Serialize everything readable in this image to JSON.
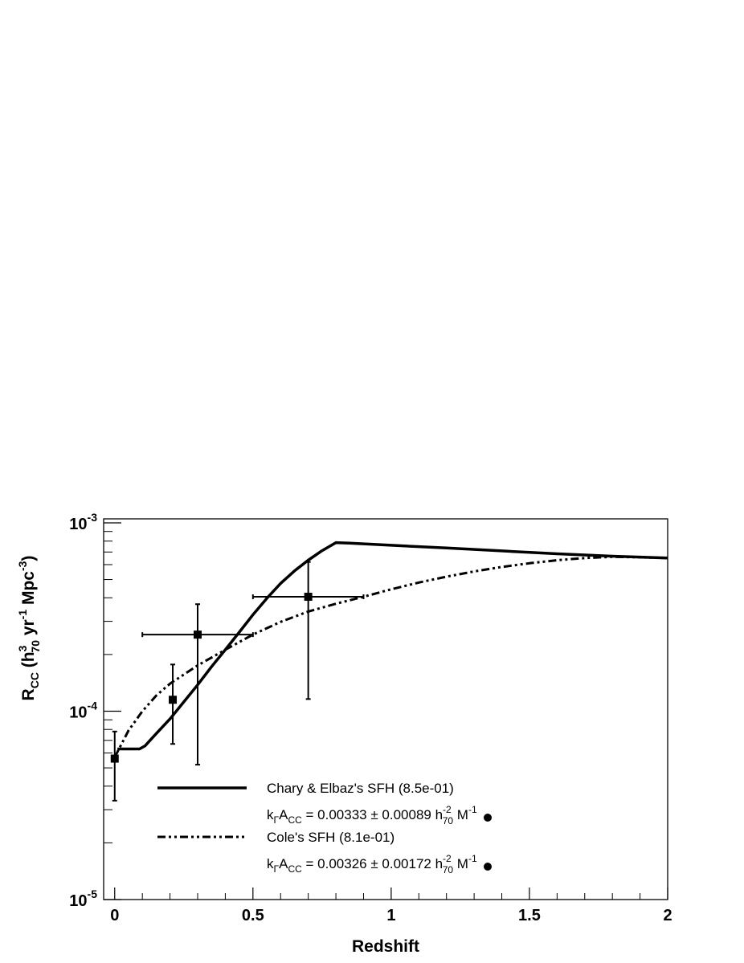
{
  "chart_data": {
    "type": "scatter",
    "xlabel": "Redshift",
    "ylabel": "R_{CC} (h^{3}_{70} yr^{-1} Mpc^{-3})",
    "ylabel_parts": {
      "main": "R",
      "main_sub": "CC",
      "open": " (h",
      "h_sup": "3",
      "h_sub": "70",
      "yr": " yr",
      "yr_sup": "-1",
      "mpc": " Mpc",
      "mpc_sup": "-3",
      "close": ")"
    },
    "xlim": [
      -0.04,
      2.0
    ],
    "ylim": [
      1e-05,
      0.00105
    ],
    "log_y": true,
    "x_ticks": [
      {
        "value": 0,
        "label": "0"
      },
      {
        "value": 0.5,
        "label": "0.5"
      },
      {
        "value": 1,
        "label": "1"
      },
      {
        "value": 1.5,
        "label": "1.5"
      },
      {
        "value": 2,
        "label": "2"
      }
    ],
    "y_ticks": [
      {
        "value": 1e-05,
        "base": "10",
        "exp": "-5"
      },
      {
        "value": 0.0001,
        "base": "10",
        "exp": "-4"
      },
      {
        "value": 0.001,
        "base": "10",
        "exp": "-3"
      }
    ],
    "grid": false,
    "legend_position": "bottom-center",
    "points": [
      {
        "x": 0.0,
        "y": 5.6e-05,
        "x_lo": 0.0,
        "x_hi": 0.0,
        "y_lo": 3.35e-05,
        "y_hi": 7.8e-05
      },
      {
        "x": 0.21,
        "y": 0.000115,
        "x_lo": 0.21,
        "x_hi": 0.21,
        "y_lo": 6.7e-05,
        "y_hi": 0.000177
      },
      {
        "x": 0.3,
        "y": 0.000255,
        "x_lo": 0.1,
        "x_hi": 0.5,
        "y_lo": 5.2e-05,
        "y_hi": 0.00037
      },
      {
        "x": 0.7,
        "y": 0.000405,
        "x_lo": 0.5,
        "x_hi": 0.9,
        "y_lo": 0.000116,
        "y_hi": 0.00062
      }
    ],
    "series": [
      {
        "name": "Chary & Elbaz's SFH (8.5e-01)",
        "style": "solid",
        "coefficient": {
          "k": "k",
          "k_sub": "Γ",
          "a": "A",
          "a_sub": "CC",
          "eq": " = 0.00333 ± 0.00089 h",
          "h_sup": "-2",
          "h_sub": "70",
          "m": " M",
          "m_sup": "-1"
        },
        "x": [
          0.01,
          0.09,
          0.11,
          0.15,
          0.2,
          0.25,
          0.3,
          0.35,
          0.4,
          0.45,
          0.5,
          0.55,
          0.6,
          0.65,
          0.7,
          0.75,
          0.8,
          0.85,
          1.0,
          1.2,
          1.4,
          1.6,
          1.8,
          2.0
        ],
        "y": [
          6.3e-05,
          6.3e-05,
          6.55e-05,
          7.6e-05,
          9.1e-05,
          0.000112,
          0.000138,
          0.000172,
          0.000212,
          0.000262,
          0.000325,
          0.000397,
          0.000477,
          0.000555,
          0.000633,
          0.000712,
          0.000785,
          0.00078,
          0.00076,
          0.000735,
          0.00071,
          0.000685,
          0.000665,
          0.00065
        ]
      },
      {
        "name": "Cole's SFH (8.1e-01)",
        "style": "dash-dot",
        "coefficient": {
          "k": "k",
          "k_sub": "Γ",
          "a": "A",
          "a_sub": "CC",
          "eq": " = 0.00326 ± 0.00172 h",
          "h_sup": "-2",
          "h_sub": "70",
          "m": " M",
          "m_sup": "-1"
        },
        "x": [
          0.0,
          0.05,
          0.1,
          0.15,
          0.2,
          0.3,
          0.4,
          0.5,
          0.6,
          0.7,
          0.8,
          0.9,
          1.0,
          1.1,
          1.2,
          1.3,
          1.4,
          1.5,
          1.6,
          1.7,
          1.8,
          1.9,
          2.0
        ],
        "y": [
          5.7e-05,
          7.9e-05,
          0.0001,
          0.000121,
          0.00014,
          0.000175,
          0.000212,
          0.000255,
          0.000298,
          0.000338,
          0.000372,
          0.000405,
          0.000444,
          0.000482,
          0.000518,
          0.000552,
          0.000583,
          0.00061,
          0.000633,
          0.00065,
          0.00066,
          0.000656,
          0.00065
        ]
      }
    ]
  }
}
